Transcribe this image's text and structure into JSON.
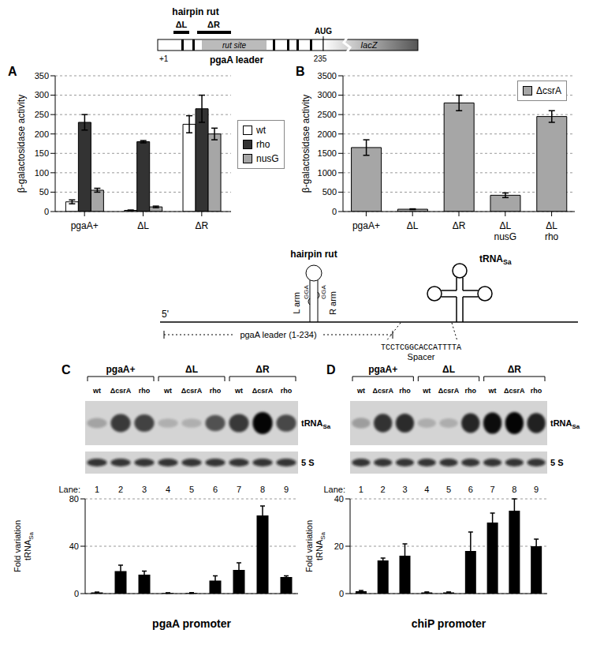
{
  "schematic": {
    "hairpin": "hairpin rut",
    "deletions": [
      "ΔL",
      "ΔR"
    ],
    "rut": "rut site",
    "leader": "pgaA leader",
    "start": "+1",
    "end": "235",
    "start_codon": "AUG",
    "reporter": "lacZ"
  },
  "chart_data": [
    {
      "title": "A",
      "type": "bar",
      "categories": [
        "pgaA+",
        "ΔL",
        "ΔR"
      ],
      "series": [
        {
          "name": "wt",
          "color": "#ffffff",
          "values": [
            25,
            3,
            225
          ],
          "errors": [
            5,
            1,
            22
          ]
        },
        {
          "name": "rho",
          "color": "#333333",
          "values": [
            230,
            180,
            265
          ],
          "errors": [
            20,
            3,
            35
          ]
        },
        {
          "name": "nusG",
          "color": "#a6a6a6",
          "values": [
            55,
            12,
            200
          ],
          "errors": [
            5,
            2,
            15
          ]
        }
      ],
      "y_label": "β-galactosidase activity",
      "ylim": [
        0,
        350
      ],
      "yticks": [
        0,
        50,
        100,
        150,
        200,
        250,
        300,
        350
      ],
      "grid": true,
      "legend": "right"
    },
    {
      "title": "B",
      "type": "bar",
      "categories": [
        "pgaA+",
        "ΔL",
        "ΔR",
        "ΔL nusG",
        "ΔL rho"
      ],
      "series": [
        {
          "name": "ΔcsrA",
          "color": "#a6a6a6",
          "values": [
            1650,
            60,
            2800,
            420,
            2450
          ],
          "errors": [
            200,
            10,
            200,
            60,
            150
          ]
        }
      ],
      "y_label": "β-galactosidase activity",
      "ylim": [
        0,
        3500
      ],
      "yticks": [
        0,
        500,
        1000,
        1500,
        2000,
        2500,
        3000,
        3500
      ],
      "grid": true,
      "legend": "upper right"
    },
    {
      "type": "bar",
      "categories": [
        "1",
        "2",
        "3",
        "4",
        "5",
        "6",
        "7",
        "8",
        "9"
      ],
      "x_label": "Lane:",
      "values": [
        1,
        19,
        16,
        0.5,
        0.5,
        11,
        20,
        66,
        14
      ],
      "errors": [
        0.3,
        5,
        3,
        0.2,
        0.3,
        4,
        6,
        8,
        1
      ],
      "color": "#000000",
      "y_label": {
        "lines": [
          "Fold variation",
          "tRNA"
        ],
        "sub": "Sa"
      },
      "ylim": [
        0,
        80
      ],
      "yticks": [
        0,
        40,
        80
      ],
      "grid": true
    },
    {
      "type": "bar",
      "categories": [
        "1",
        "2",
        "3",
        "4",
        "5",
        "6",
        "7",
        "8",
        "9"
      ],
      "x_label": "Lane:",
      "values": [
        1,
        14,
        16,
        0.5,
        0.5,
        18,
        30,
        35,
        20
      ],
      "errors": [
        0.3,
        1,
        5,
        0.2,
        0.2,
        8,
        4,
        5,
        3
      ],
      "color": "#000000",
      "y_label": {
        "lines": [
          "Fold variation",
          "tRNA"
        ],
        "sub": "Sa"
      },
      "ylim": [
        0,
        40
      ],
      "yticks": [
        0,
        20,
        40
      ],
      "grid": true
    }
  ],
  "construct": {
    "hairpin": "hairpin rut",
    "left_arm": "L arm",
    "right_arm": "R arm",
    "motifs": [
      "GGA",
      "GGA"
    ],
    "five_prime": "5'",
    "trna": {
      "text": "tRNA",
      "sub": "Sa"
    },
    "leader": "pgaA leader (1-234)",
    "spacer_sequence": "TCCTCGGCACCATTTTA",
    "spacer": "Spacer"
  },
  "blots": [
    {
      "title": "C",
      "groups": [
        "pgaA+",
        "ΔL",
        "ΔR"
      ],
      "lanes": [
        "wt",
        "ΔcsrA",
        "rho",
        "wt",
        "ΔcsrA",
        "rho",
        "wt",
        "ΔcsrA",
        "rho"
      ],
      "bands": [
        {
          "text": "tRNA",
          "sub": "Sa"
        },
        {
          "text": "5 S"
        }
      ],
      "caption": "pgaA promoter"
    },
    {
      "title": "D",
      "groups": [
        "pgaA+",
        "ΔL",
        "ΔR"
      ],
      "lanes": [
        "wt",
        "ΔcsrA",
        "rho",
        "wt",
        "ΔcsrA",
        "rho",
        "wt",
        "ΔcsrA",
        "rho"
      ],
      "bands": [
        {
          "text": "tRNA",
          "sub": "Sa"
        },
        {
          "text": "5 S"
        }
      ],
      "caption": "chiP promoter"
    }
  ]
}
